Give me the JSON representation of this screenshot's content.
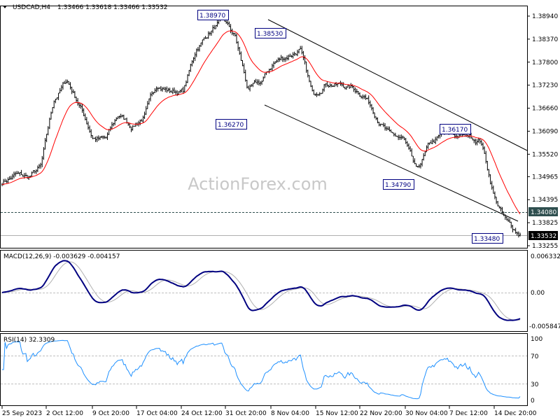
{
  "header": {
    "symbol": "USDCAD,H4",
    "ohlc": "1.33466 1.33618 1.33466 1.33532",
    "menu_icon": "triangle-down-icon"
  },
  "watermark": "ActionForex.com",
  "price_axis": {
    "ticks": [
      "1.38940",
      "1.38370",
      "1.37800",
      "1.37230",
      "1.36660",
      "1.36090",
      "1.35520",
      "1.34965",
      "1.34395",
      "1.33825",
      "1.33255"
    ]
  },
  "level_line": {
    "label": "1.34080",
    "value": 1.3408
  },
  "current_price": {
    "label": "1.33532",
    "value": 1.33532
  },
  "annotations": [
    {
      "label": "1.38970",
      "value": 1.3897
    },
    {
      "label": "1.38530",
      "value": 1.3853
    },
    {
      "label": "1.36270",
      "value": 1.3627
    },
    {
      "label": "1.34790",
      "value": 1.3479
    },
    {
      "label": "1.36170",
      "value": 1.3617
    },
    {
      "label": "1.33480",
      "value": 1.3348
    }
  ],
  "macd": {
    "label": "MACD(12,26,9) -0.003629 -0.004157",
    "axis": [
      "0.006332",
      "0.00",
      "-0.005847"
    ]
  },
  "rsi": {
    "label": "RSI(14) 32.3309",
    "axis": [
      "100",
      "70",
      "30",
      "0"
    ]
  },
  "time_axis": [
    "25 Sep 2023",
    "2 Oct 12:00",
    "9 Oct 20:00",
    "17 Oct 04:00",
    "24 Oct 12:00",
    "31 Oct 20:00",
    "8 Nov 04:00",
    "15 Nov 12:00",
    "22 Nov 20:00",
    "30 Nov 04:00",
    "7 Dec 12:00",
    "14 Dec 20:00"
  ],
  "colors": {
    "candles": "#000000",
    "ma": "#ff0000",
    "macd": "#000080",
    "signal": "#c0c0c0",
    "rsi": "#1e90ff",
    "channel": "#000000",
    "level_tag": "#2f4f4f",
    "price_tag": "#000000"
  },
  "chart_data": {
    "type": "line",
    "title": "USDCAD,H4",
    "ylim": [
      1.33255,
      1.3894
    ],
    "close_path": [
      1.3483,
      1.3501,
      1.3492,
      1.3518,
      1.3683,
      1.3735,
      1.3674,
      1.3596,
      1.3587,
      1.3648,
      1.3622,
      1.3648,
      1.3726,
      1.3709,
      1.3709,
      1.3813,
      1.3856,
      1.3882,
      1.3839,
      1.3709,
      1.3726,
      1.3778,
      1.3795,
      1.3813,
      1.3691,
      1.3735,
      1.3726,
      1.3717,
      1.37,
      1.3648,
      1.3596,
      1.3587,
      1.3501,
      1.357,
      1.3596,
      1.3596,
      1.3596,
      1.3587,
      1.3449,
      1.3379,
      1.3353
    ],
    "channel": {
      "upper": [
        1.3885,
        1.3555
      ],
      "lower": [
        1.3676,
        1.339
      ]
    },
    "indicators": [
      "moving average",
      "MACD(12,26,9)",
      "RSI(14)"
    ],
    "rsi_levels": [
      70,
      30
    ]
  }
}
